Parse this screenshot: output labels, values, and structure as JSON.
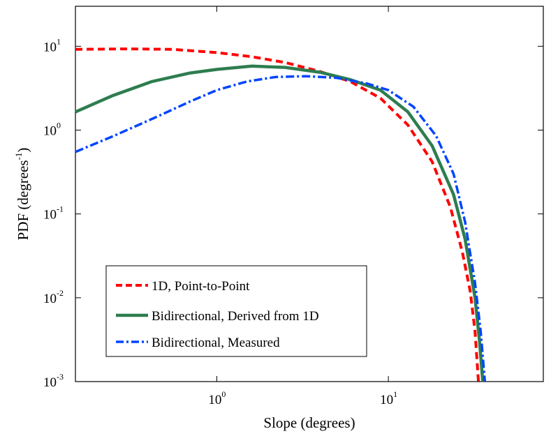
{
  "chart_data": {
    "type": "line",
    "xscale": "log",
    "yscale": "log",
    "xlim": [
      0.15,
      80
    ],
    "ylim": [
      0.001,
      30
    ],
    "grid": false,
    "legend_position": "lower-left",
    "title": "",
    "xlabel": "Slope  (degrees)",
    "ylabel": "PDF  (degrees",
    "ylabel_exp": "-1",
    "ylabel_suffix": ")",
    "x_ticks": [
      {
        "value": 1,
        "base": "10",
        "exp": "0"
      },
      {
        "value": 10,
        "base": "10",
        "exp": "1"
      }
    ],
    "y_ticks": [
      {
        "value": 10,
        "base": "10",
        "exp": "1"
      },
      {
        "value": 1,
        "base": "10",
        "exp": "0"
      },
      {
        "value": 0.1,
        "base": "10",
        "exp": "-1"
      },
      {
        "value": 0.01,
        "base": "10",
        "exp": "-2"
      },
      {
        "value": 0.001,
        "base": "10",
        "exp": "-3"
      }
    ],
    "series": [
      {
        "name": "1D, Point-to-Point",
        "color": "#ff0000",
        "style": "dashed",
        "points": [
          [
            0.15,
            9.2
          ],
          [
            0.3,
            9.3
          ],
          [
            0.55,
            9.2
          ],
          [
            1.0,
            8.4
          ],
          [
            1.6,
            7.5
          ],
          [
            2.5,
            6.4
          ],
          [
            4,
            5.0
          ],
          [
            6,
            3.8
          ],
          [
            9,
            2.4
          ],
          [
            13,
            1.15
          ],
          [
            18,
            0.42
          ],
          [
            23,
            0.12
          ],
          [
            27,
            0.035
          ],
          [
            30,
            0.012
          ],
          [
            32,
            0.004
          ],
          [
            33.5,
            0.001
          ]
        ]
      },
      {
        "name": "Bidirectional, Derived from 1D",
        "color": "#2e7d4f",
        "style": "solid",
        "points": [
          [
            0.15,
            1.65
          ],
          [
            0.25,
            2.6
          ],
          [
            0.42,
            3.8
          ],
          [
            0.7,
            4.8
          ],
          [
            1.0,
            5.3
          ],
          [
            1.6,
            5.8
          ],
          [
            2.5,
            5.6
          ],
          [
            4,
            4.9
          ],
          [
            6,
            4.0
          ],
          [
            9,
            3.0
          ],
          [
            13,
            1.65
          ],
          [
            18,
            0.65
          ],
          [
            24,
            0.17
          ],
          [
            28,
            0.05
          ],
          [
            32,
            0.01
          ],
          [
            34,
            0.003
          ],
          [
            35.5,
            0.001
          ]
        ]
      },
      {
        "name": "Bidirectional, Measured",
        "color": "#0044ff",
        "style": "dashdot",
        "points": [
          [
            0.15,
            0.55
          ],
          [
            0.25,
            0.85
          ],
          [
            0.45,
            1.45
          ],
          [
            0.7,
            2.2
          ],
          [
            1.0,
            3.0
          ],
          [
            1.5,
            3.8
          ],
          [
            2.2,
            4.3
          ],
          [
            3.3,
            4.4
          ],
          [
            5,
            4.2
          ],
          [
            7.5,
            3.6
          ],
          [
            10,
            3.0
          ],
          [
            14,
            1.9
          ],
          [
            19,
            0.85
          ],
          [
            24,
            0.3
          ],
          [
            28,
            0.08
          ],
          [
            32,
            0.015
          ],
          [
            34.5,
            0.004
          ],
          [
            36.5,
            0.001
          ]
        ]
      }
    ]
  }
}
